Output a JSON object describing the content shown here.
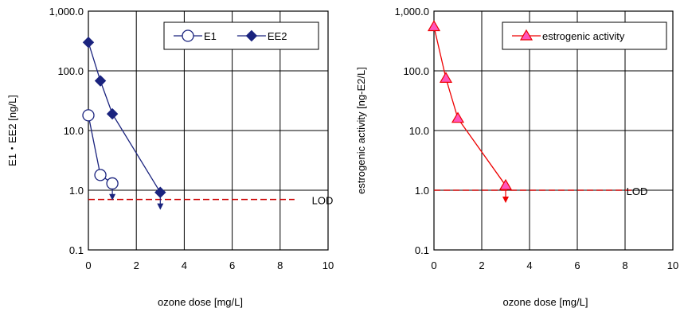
{
  "chart_data": [
    {
      "type": "line",
      "yscale": "log",
      "xlim": [
        0,
        10
      ],
      "ylim": [
        0.1,
        1000
      ],
      "xticks": [
        0,
        2,
        4,
        6,
        8,
        10
      ],
      "yticks": [
        0.1,
        1,
        10,
        100,
        1000
      ],
      "xtick_labels": [
        "0",
        "2",
        "4",
        "6",
        "8",
        "10"
      ],
      "ytick_labels": [
        "0.1",
        "1.0",
        "10.0",
        "100.0",
        "1,000.0"
      ],
      "xlabel": "ozone dose [mg/L]",
      "ylabel": "E1・EE2 [ng/L]",
      "grid": true,
      "legend": "top-right",
      "series": [
        {
          "name": "E1",
          "marker": "circle-open",
          "color": "#1a237e",
          "x": [
            0,
            0.5,
            1.0
          ],
          "y": [
            18,
            1.8,
            1.3
          ]
        },
        {
          "name": "EE2",
          "marker": "diamond",
          "color": "#1a237e",
          "x": [
            0,
            0.5,
            1.0,
            3.0
          ],
          "y": [
            300,
            68,
            19,
            0.92
          ]
        }
      ],
      "below_lod_arrows": [
        {
          "x": 1.0,
          "from": 1.15,
          "to": 0.72,
          "color": "#1a237e"
        },
        {
          "x": 3.0,
          "from": 0.85,
          "to": 0.5,
          "color": "#1a237e"
        }
      ],
      "lod": {
        "value": 0.7,
        "label": "LOD",
        "color": "#cc0000",
        "x_end": 8.6
      }
    },
    {
      "type": "line",
      "yscale": "log",
      "xlim": [
        0,
        10
      ],
      "ylim": [
        0.1,
        1000
      ],
      "xticks": [
        0,
        2,
        4,
        6,
        8,
        10
      ],
      "yticks": [
        0.1,
        1,
        10,
        100,
        1000
      ],
      "xtick_labels": [
        "0",
        "2",
        "4",
        "6",
        "8",
        "10"
      ],
      "ytick_labels": [
        "0.1",
        "1.0",
        "10.0",
        "100.0",
        "1,000.0"
      ],
      "xlabel": "ozone dose [mg/L]",
      "ylabel": "estrogenic activity [ng-E2/L]",
      "grid": true,
      "legend": "top-right",
      "series": [
        {
          "name": "estrogenic activity",
          "marker": "triangle",
          "color": "#ee0000",
          "fill": "#ff55bb",
          "x": [
            0,
            0.5,
            1.0,
            3.0
          ],
          "y": [
            550,
            75,
            16,
            1.2
          ]
        }
      ],
      "below_lod_arrows": [
        {
          "x": 3.0,
          "from": 1.05,
          "to": 0.65,
          "color": "#ee0000"
        }
      ],
      "lod": {
        "value": 1.0,
        "label": "LOD",
        "color": "#cc0000",
        "x_end": 8.3
      }
    }
  ]
}
